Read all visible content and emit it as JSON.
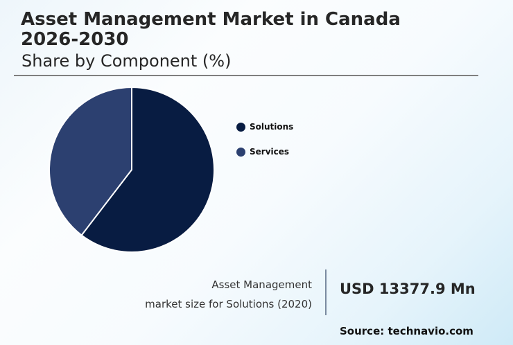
{
  "header": {
    "title": "Asset Management Market in Canada 2026-2030",
    "subtitle": "Share by Component (%)"
  },
  "legend": {
    "items": [
      {
        "label": "Solutions",
        "color": "#081c42"
      },
      {
        "label": "Services",
        "color": "#2c4070"
      }
    ]
  },
  "kpi": {
    "label_line1": "Asset Management",
    "label_line2": "market size for Solutions (2020)",
    "value": "USD 13377.9 Mn"
  },
  "footer": {
    "source": "Source: technavio.com"
  },
  "chart_data": {
    "type": "pie",
    "title": "Asset Management Market in Canada 2026-2030",
    "subtitle": "Share by Component (%)",
    "categories": [
      "Solutions",
      "Services"
    ],
    "values": [
      60.4,
      39.6
    ],
    "colors": [
      "#081c42",
      "#2c4070"
    ],
    "start_angle": "12 o'clock, clockwise",
    "legend_position": "right",
    "annotations": [
      "Asset Management market size for Solutions (2020): USD 13377.9 Mn",
      "Source: technavio.com"
    ]
  }
}
